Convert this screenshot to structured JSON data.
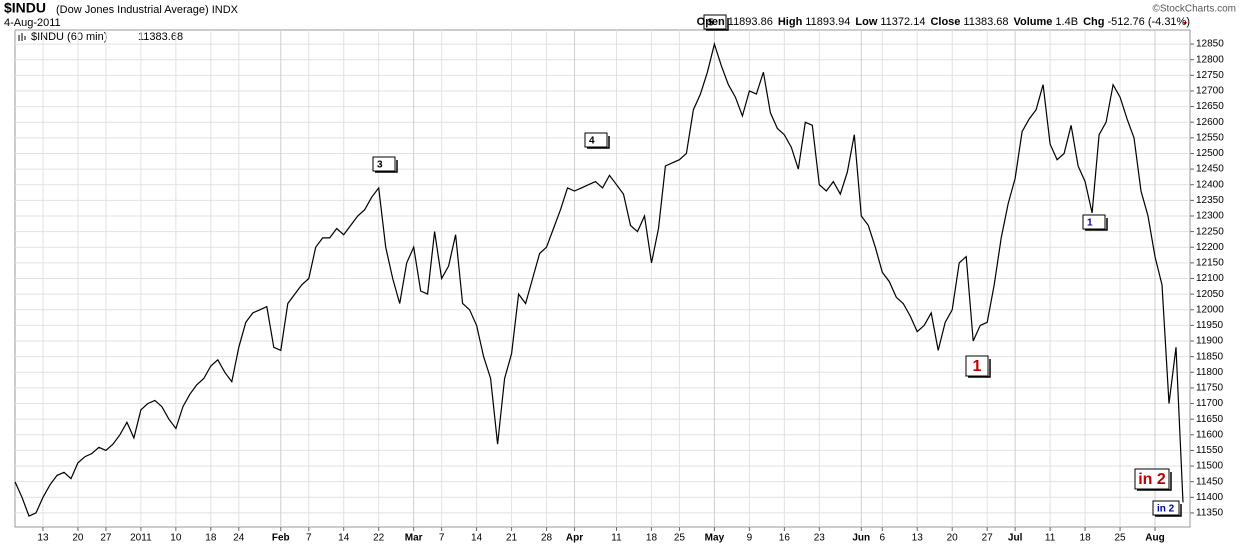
{
  "chart_data": {
    "type": "line",
    "symbol": "$INDU",
    "title": "(Dow Jones Industrial Average) INDX",
    "date": "4-Aug-2011",
    "source": "©StockCharts.com",
    "stats": [
      {
        "label": "Open",
        "value": "11893.86"
      },
      {
        "label": "High",
        "value": "11893.94"
      },
      {
        "label": "Low",
        "value": "11372.14"
      },
      {
        "label": "Close",
        "value": "11383.68"
      },
      {
        "label": "Volume",
        "value": "1.4B"
      },
      {
        "label": "Chg",
        "value": "-512.76 (-4.31%)"
      }
    ],
    "last_value": 11383.68,
    "grid": true,
    "series": [
      {
        "name": "$INDU (60 min)",
        "color": "#000000",
        "values": [
          11450,
          11400,
          11340,
          11350,
          11400,
          11440,
          11470,
          11480,
          11460,
          11510,
          11530,
          11540,
          11560,
          11550,
          11570,
          11600,
          11640,
          11590,
          11680,
          11700,
          11710,
          11690,
          11650,
          11620,
          11690,
          11730,
          11760,
          11780,
          11820,
          11840,
          11800,
          11770,
          11880,
          11960,
          11990,
          12000,
          12010,
          11880,
          11870,
          12020,
          12050,
          12080,
          12100,
          12200,
          12230,
          12230,
          12260,
          12240,
          12270,
          12300,
          12320,
          12360,
          12390,
          12200,
          12100,
          12020,
          12150,
          12200,
          12060,
          12050,
          12250,
          12100,
          12140,
          12240,
          12020,
          12000,
          11950,
          11850,
          11780,
          11570,
          11780,
          11860,
          12050,
          12020,
          12100,
          12180,
          12200,
          12260,
          12320,
          12390,
          12380,
          12390,
          12400,
          12410,
          12390,
          12430,
          12400,
          12370,
          12270,
          12250,
          12300,
          12150,
          12260,
          12460,
          12470,
          12480,
          12500,
          12640,
          12690,
          12760,
          12850,
          12780,
          12720,
          12680,
          12620,
          12700,
          12690,
          12760,
          12630,
          12580,
          12560,
          12520,
          12450,
          12600,
          12590,
          12400,
          12380,
          12410,
          12370,
          12440,
          12560,
          12300,
          12270,
          12200,
          12120,
          12090,
          12040,
          12020,
          11980,
          11930,
          11950,
          11990,
          11870,
          11960,
          12000,
          12150,
          12170,
          11900,
          11950,
          11960,
          12080,
          12230,
          12340,
          12420,
          12570,
          12610,
          12640,
          12720,
          12530,
          12480,
          12500,
          12590,
          12460,
          12410,
          12310,
          12560,
          12600,
          12720,
          12680,
          12610,
          12550,
          12380,
          12300,
          12170,
          12080,
          11700,
          11880,
          11383.68
        ]
      }
    ],
    "xlim": [
      0,
      168
    ],
    "xticks": [
      {
        "value": 4,
        "label": "13"
      },
      {
        "value": 9,
        "label": "20"
      },
      {
        "value": 13,
        "label": "27"
      },
      {
        "value": 18,
        "label": "2011"
      },
      {
        "value": 23,
        "label": "10"
      },
      {
        "value": 28,
        "label": "18"
      },
      {
        "value": 32,
        "label": "24"
      },
      {
        "value": 38,
        "label": "Feb"
      },
      {
        "value": 42,
        "label": "7"
      },
      {
        "value": 47,
        "label": "14"
      },
      {
        "value": 52,
        "label": "22"
      },
      {
        "value": 57,
        "label": "Mar"
      },
      {
        "value": 61,
        "label": "7"
      },
      {
        "value": 66,
        "label": "14"
      },
      {
        "value": 71,
        "label": "21"
      },
      {
        "value": 76,
        "label": "28"
      },
      {
        "value": 80,
        "label": "Apr"
      },
      {
        "value": 86,
        "label": "11"
      },
      {
        "value": 91,
        "label": "18"
      },
      {
        "value": 95,
        "label": "25"
      },
      {
        "value": 100,
        "label": "May"
      },
      {
        "value": 105,
        "label": "9"
      },
      {
        "value": 110,
        "label": "16"
      },
      {
        "value": 115,
        "label": "23"
      },
      {
        "value": 121,
        "label": "Jun"
      },
      {
        "value": 124,
        "label": "6"
      },
      {
        "value": 129,
        "label": "13"
      },
      {
        "value": 134,
        "label": "20"
      },
      {
        "value": 139,
        "label": "27"
      },
      {
        "value": 143,
        "label": "Jul"
      },
      {
        "value": 148,
        "label": "11"
      },
      {
        "value": 153,
        "label": "18"
      },
      {
        "value": 158,
        "label": "25"
      },
      {
        "value": 163,
        "label": "Aug"
      }
    ],
    "ylim": [
      11305,
      12895
    ],
    "yticks": [
      11350,
      11400,
      11450,
      11500,
      11550,
      11600,
      11650,
      11700,
      11750,
      11800,
      11850,
      11900,
      11950,
      12000,
      12050,
      12100,
      12150,
      12200,
      12250,
      12300,
      12350,
      12400,
      12450,
      12500,
      12550,
      12600,
      12650,
      12700,
      12750,
      12800,
      12850
    ],
    "annotations": [
      {
        "text": "3",
        "style": "box"
      },
      {
        "text": "4",
        "style": "box"
      },
      {
        "text": "5",
        "style": "box"
      },
      {
        "text": "1",
        "style": "red"
      },
      {
        "text": "1",
        "style": "blue"
      },
      {
        "text": "in 2",
        "style": "red"
      },
      {
        "text": "in 2",
        "style": "blue"
      }
    ]
  }
}
